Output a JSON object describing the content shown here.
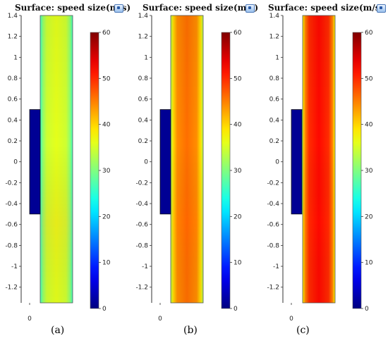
{
  "chart_data": [
    {
      "type": "heatmap",
      "title": "Surface: speed size(m/s)",
      "caption": "(a)",
      "ylim": [
        -1.35,
        1.4
      ],
      "y_ticks": [
        "1.4",
        "1.2",
        "1",
        "0.8",
        "0.6",
        "0.4",
        "0.2",
        "0",
        "-0.2",
        "-0.4",
        "-0.6",
        "-0.8",
        "-1",
        "-1.2"
      ],
      "x_ticks": [
        "0"
      ],
      "colorbar": {
        "min": 0,
        "max": 60,
        "ticks": [
          "60",
          "50",
          "40",
          "30",
          "20",
          "10",
          "0"
        ]
      },
      "max_speed": 36
    },
    {
      "type": "heatmap",
      "title": "Surface: speed size(m/s)",
      "caption": "(b)",
      "ylim": [
        -1.35,
        1.4
      ],
      "y_ticks": [
        "1.4",
        "1.2",
        "1",
        "0.8",
        "0.6",
        "0.4",
        "0.2",
        "0",
        "-0.2",
        "-0.4",
        "-0.6",
        "-0.8",
        "-1",
        "-1.2"
      ],
      "x_ticks": [
        "0"
      ],
      "colorbar": {
        "min": 0,
        "max": 60,
        "ticks": [
          "60",
          "50",
          "40",
          "30",
          "20",
          "10",
          "0"
        ]
      },
      "max_speed": 46
    },
    {
      "type": "heatmap",
      "title": "Surface: speed size(m/s)",
      "caption": "(c)",
      "ylim": [
        -1.35,
        1.4
      ],
      "y_ticks": [
        "1.4",
        "1.2",
        "1",
        "0.8",
        "0.6",
        "0.4",
        "0.2",
        "0",
        "-0.2",
        "-0.4",
        "-0.6",
        "-0.8",
        "-1",
        "-1.2"
      ],
      "x_ticks": [
        "0"
      ],
      "colorbar": {
        "min": 0,
        "max": 60,
        "ticks": [
          "60",
          "50",
          "40",
          "30",
          "20",
          "10",
          "0"
        ]
      },
      "max_speed": 52
    }
  ]
}
